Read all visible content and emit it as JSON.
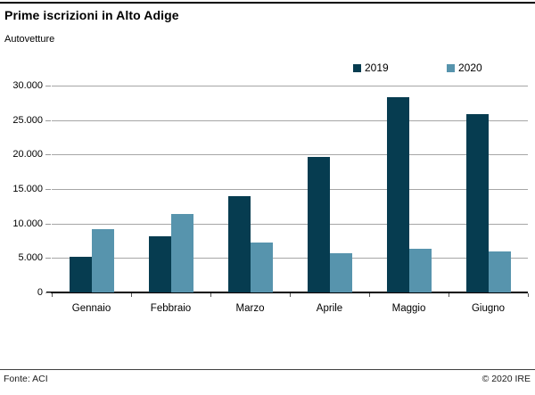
{
  "header": {
    "title": "Prime iscrizioni in Alto Adige",
    "subtitle": "Autovetture"
  },
  "footer": {
    "source": "Fonte: ACI",
    "copyright": "© 2020 IRE"
  },
  "colors": {
    "series_2019": "#063c50",
    "series_2020": "#5794ad",
    "gridline": "#a6a6a6",
    "axis": "#000000"
  },
  "chart_data": {
    "type": "bar",
    "title": "Prime iscrizioni in Alto Adige",
    "subtitle": "Autovetture",
    "categories": [
      "Gennaio",
      "Febbraio",
      "Marzo",
      "Aprile",
      "Maggio",
      "Giugno"
    ],
    "series": [
      {
        "name": "2019",
        "color": "#063c50",
        "values": [
          5200,
          8200,
          14000,
          19700,
          28300,
          25900
        ]
      },
      {
        "name": "2020",
        "color": "#5794ad",
        "values": [
          9200,
          11400,
          7200,
          5700,
          6400,
          5900
        ]
      }
    ],
    "ylim": [
      0,
      30000
    ],
    "ytick_step": 5000,
    "ytick_labels": [
      "0",
      "5.000",
      "10.000",
      "15.000",
      "20.000",
      "25.000",
      "30.000"
    ],
    "grid": true,
    "legend_position": "top-right"
  }
}
